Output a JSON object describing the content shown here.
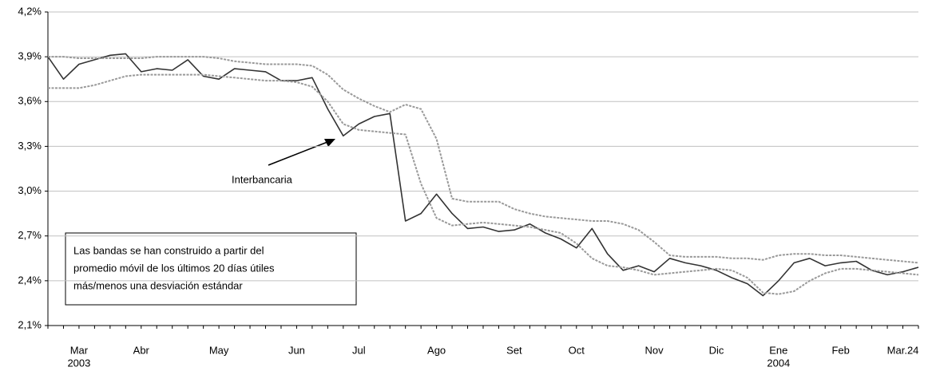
{
  "chart_data": {
    "type": "line",
    "categories": [
      null,
      null,
      [
        "Mar",
        "2003"
      ],
      null,
      null,
      null,
      [
        "Abr"
      ],
      null,
      null,
      null,
      null,
      [
        "May"
      ],
      null,
      null,
      null,
      null,
      [
        "Jun"
      ],
      null,
      null,
      null,
      [
        "Jul"
      ],
      null,
      null,
      null,
      null,
      [
        "Ago"
      ],
      null,
      null,
      null,
      null,
      [
        "Set"
      ],
      null,
      null,
      null,
      [
        "Oct"
      ],
      null,
      null,
      null,
      null,
      [
        "Nov"
      ],
      null,
      null,
      null,
      [
        "Dic"
      ],
      null,
      null,
      null,
      [
        "Ene",
        "2004"
      ],
      null,
      null,
      null,
      [
        "Feb"
      ],
      null,
      null,
      null,
      [
        "Mar.24"
      ],
      null
    ],
    "series": [
      {
        "name": "Interbancaria",
        "color": "#333333",
        "dashed": false,
        "values": [
          3.9,
          3.75,
          3.85,
          3.88,
          3.91,
          3.92,
          3.8,
          3.82,
          3.81,
          3.88,
          3.77,
          3.75,
          3.82,
          3.81,
          3.8,
          3.74,
          3.74,
          3.76,
          3.55,
          3.37,
          3.45,
          3.5,
          3.52,
          2.8,
          2.85,
          2.98,
          2.85,
          2.75,
          2.76,
          2.73,
          2.74,
          2.78,
          2.72,
          2.68,
          2.62,
          2.75,
          2.58,
          2.47,
          2.5,
          2.46,
          2.55,
          2.52,
          2.5,
          2.47,
          2.42,
          2.38,
          2.3,
          2.4,
          2.52,
          2.55,
          2.5,
          2.52,
          2.53,
          2.47,
          2.44,
          2.46,
          2.49
        ]
      },
      {
        "color": "#999999",
        "dashed": true,
        "values": [
          3.9,
          3.9,
          3.89,
          3.89,
          3.89,
          3.89,
          3.89,
          3.9,
          3.9,
          3.9,
          3.9,
          3.89,
          3.87,
          3.86,
          3.85,
          3.85,
          3.85,
          3.84,
          3.78,
          3.68,
          3.62,
          3.57,
          3.53,
          3.58,
          3.55,
          3.35,
          2.95,
          2.93,
          2.93,
          2.93,
          2.88,
          2.85,
          2.83,
          2.82,
          2.81,
          2.8,
          2.8,
          2.78,
          2.74,
          2.66,
          2.57,
          2.56,
          2.56,
          2.56,
          2.55,
          2.55,
          2.54,
          2.57,
          2.58,
          2.58,
          2.57,
          2.57,
          2.56,
          2.55,
          2.54,
          2.53,
          2.52
        ]
      },
      {
        "color": "#999999",
        "dashed": true,
        "values": [
          3.69,
          3.69,
          3.69,
          3.71,
          3.74,
          3.77,
          3.78,
          3.78,
          3.78,
          3.78,
          3.78,
          3.77,
          3.76,
          3.75,
          3.74,
          3.74,
          3.73,
          3.7,
          3.6,
          3.45,
          3.41,
          3.4,
          3.39,
          3.38,
          3.05,
          2.82,
          2.77,
          2.78,
          2.79,
          2.78,
          2.77,
          2.76,
          2.74,
          2.72,
          2.65,
          2.55,
          2.5,
          2.49,
          2.47,
          2.44,
          2.45,
          2.46,
          2.47,
          2.48,
          2.47,
          2.42,
          2.32,
          2.31,
          2.33,
          2.4,
          2.45,
          2.48,
          2.48,
          2.47,
          2.46,
          2.45,
          2.44
        ]
      }
    ],
    "ylim": [
      2.1,
      4.2
    ],
    "yticks": [
      {
        "value": 2.1,
        "label": "2,1%"
      },
      {
        "value": 2.4,
        "label": "2,4%"
      },
      {
        "value": 2.7,
        "label": "2,7%"
      },
      {
        "value": 3.0,
        "label": "3,0%"
      },
      {
        "value": 3.3,
        "label": "3,3%"
      },
      {
        "value": 3.6,
        "label": "3,6%"
      },
      {
        "value": 3.9,
        "label": "3,9%"
      },
      {
        "value": 4.2,
        "label": "4,2%"
      }
    ],
    "grid": true,
    "note": [
      "Las bandas se han construido a partir del",
      "promedio móvil de los últimos 20 días útiles",
      "más/menos una desviación estándar"
    ]
  }
}
